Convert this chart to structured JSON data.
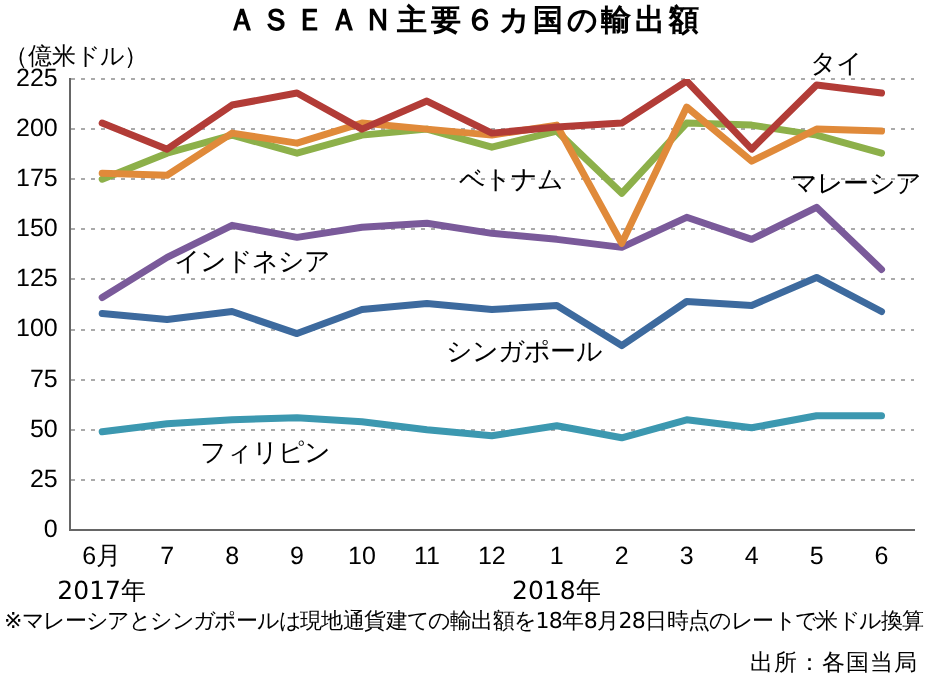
{
  "chart_data": {
    "type": "line",
    "title": "ＡＳＥＡＮ主要６カ国の輸出額",
    "ylabel": "（億米ドル）",
    "categories": [
      "6月",
      "7",
      "8",
      "9",
      "10",
      "11",
      "12",
      "1",
      "2",
      "3",
      "4",
      "5",
      "6"
    ],
    "series": [
      {
        "name": "タイ",
        "color": "#b23c37",
        "values": [
          203,
          190,
          212,
          218,
          200,
          214,
          198,
          201,
          203,
          224,
          190,
          222,
          218
        ]
      },
      {
        "name": "ベトナム",
        "color": "#e08a3a",
        "values": [
          178,
          177,
          198,
          193,
          203,
          200,
          197,
          202,
          143,
          211,
          184,
          200,
          199
        ]
      },
      {
        "name": "マレーシア",
        "color": "#8db04a",
        "values": [
          175,
          188,
          197,
          188,
          197,
          200,
          191,
          199,
          168,
          203,
          202,
          197,
          188
        ]
      },
      {
        "name": "インドネシア",
        "color": "#7a5a9a",
        "values": [
          116,
          136,
          152,
          146,
          151,
          153,
          148,
          145,
          141,
          156,
          145,
          161,
          130
        ]
      },
      {
        "name": "シンガポール",
        "color": "#3d6a9e",
        "values": [
          108,
          105,
          109,
          98,
          110,
          113,
          110,
          112,
          92,
          114,
          112,
          126,
          109
        ]
      },
      {
        "name": "フィリピン",
        "color": "#3c98b0",
        "values": [
          49,
          53,
          55,
          56,
          54,
          50,
          47,
          52,
          46,
          55,
          51,
          57,
          57
        ]
      }
    ],
    "ylim": [
      0,
      225
    ],
    "yticks": [
      0,
      25,
      50,
      75,
      100,
      125,
      150,
      175,
      200,
      225
    ],
    "grid": "y",
    "legend": false,
    "marker": "none",
    "line_style": "solid",
    "annotations": [
      "2017年",
      "2018年",
      "※マレーシアとシンガポールは現地通貨建ての輸出額を18年8月28日時点のレートで米ドル換算",
      "出所：各国当局"
    ]
  }
}
